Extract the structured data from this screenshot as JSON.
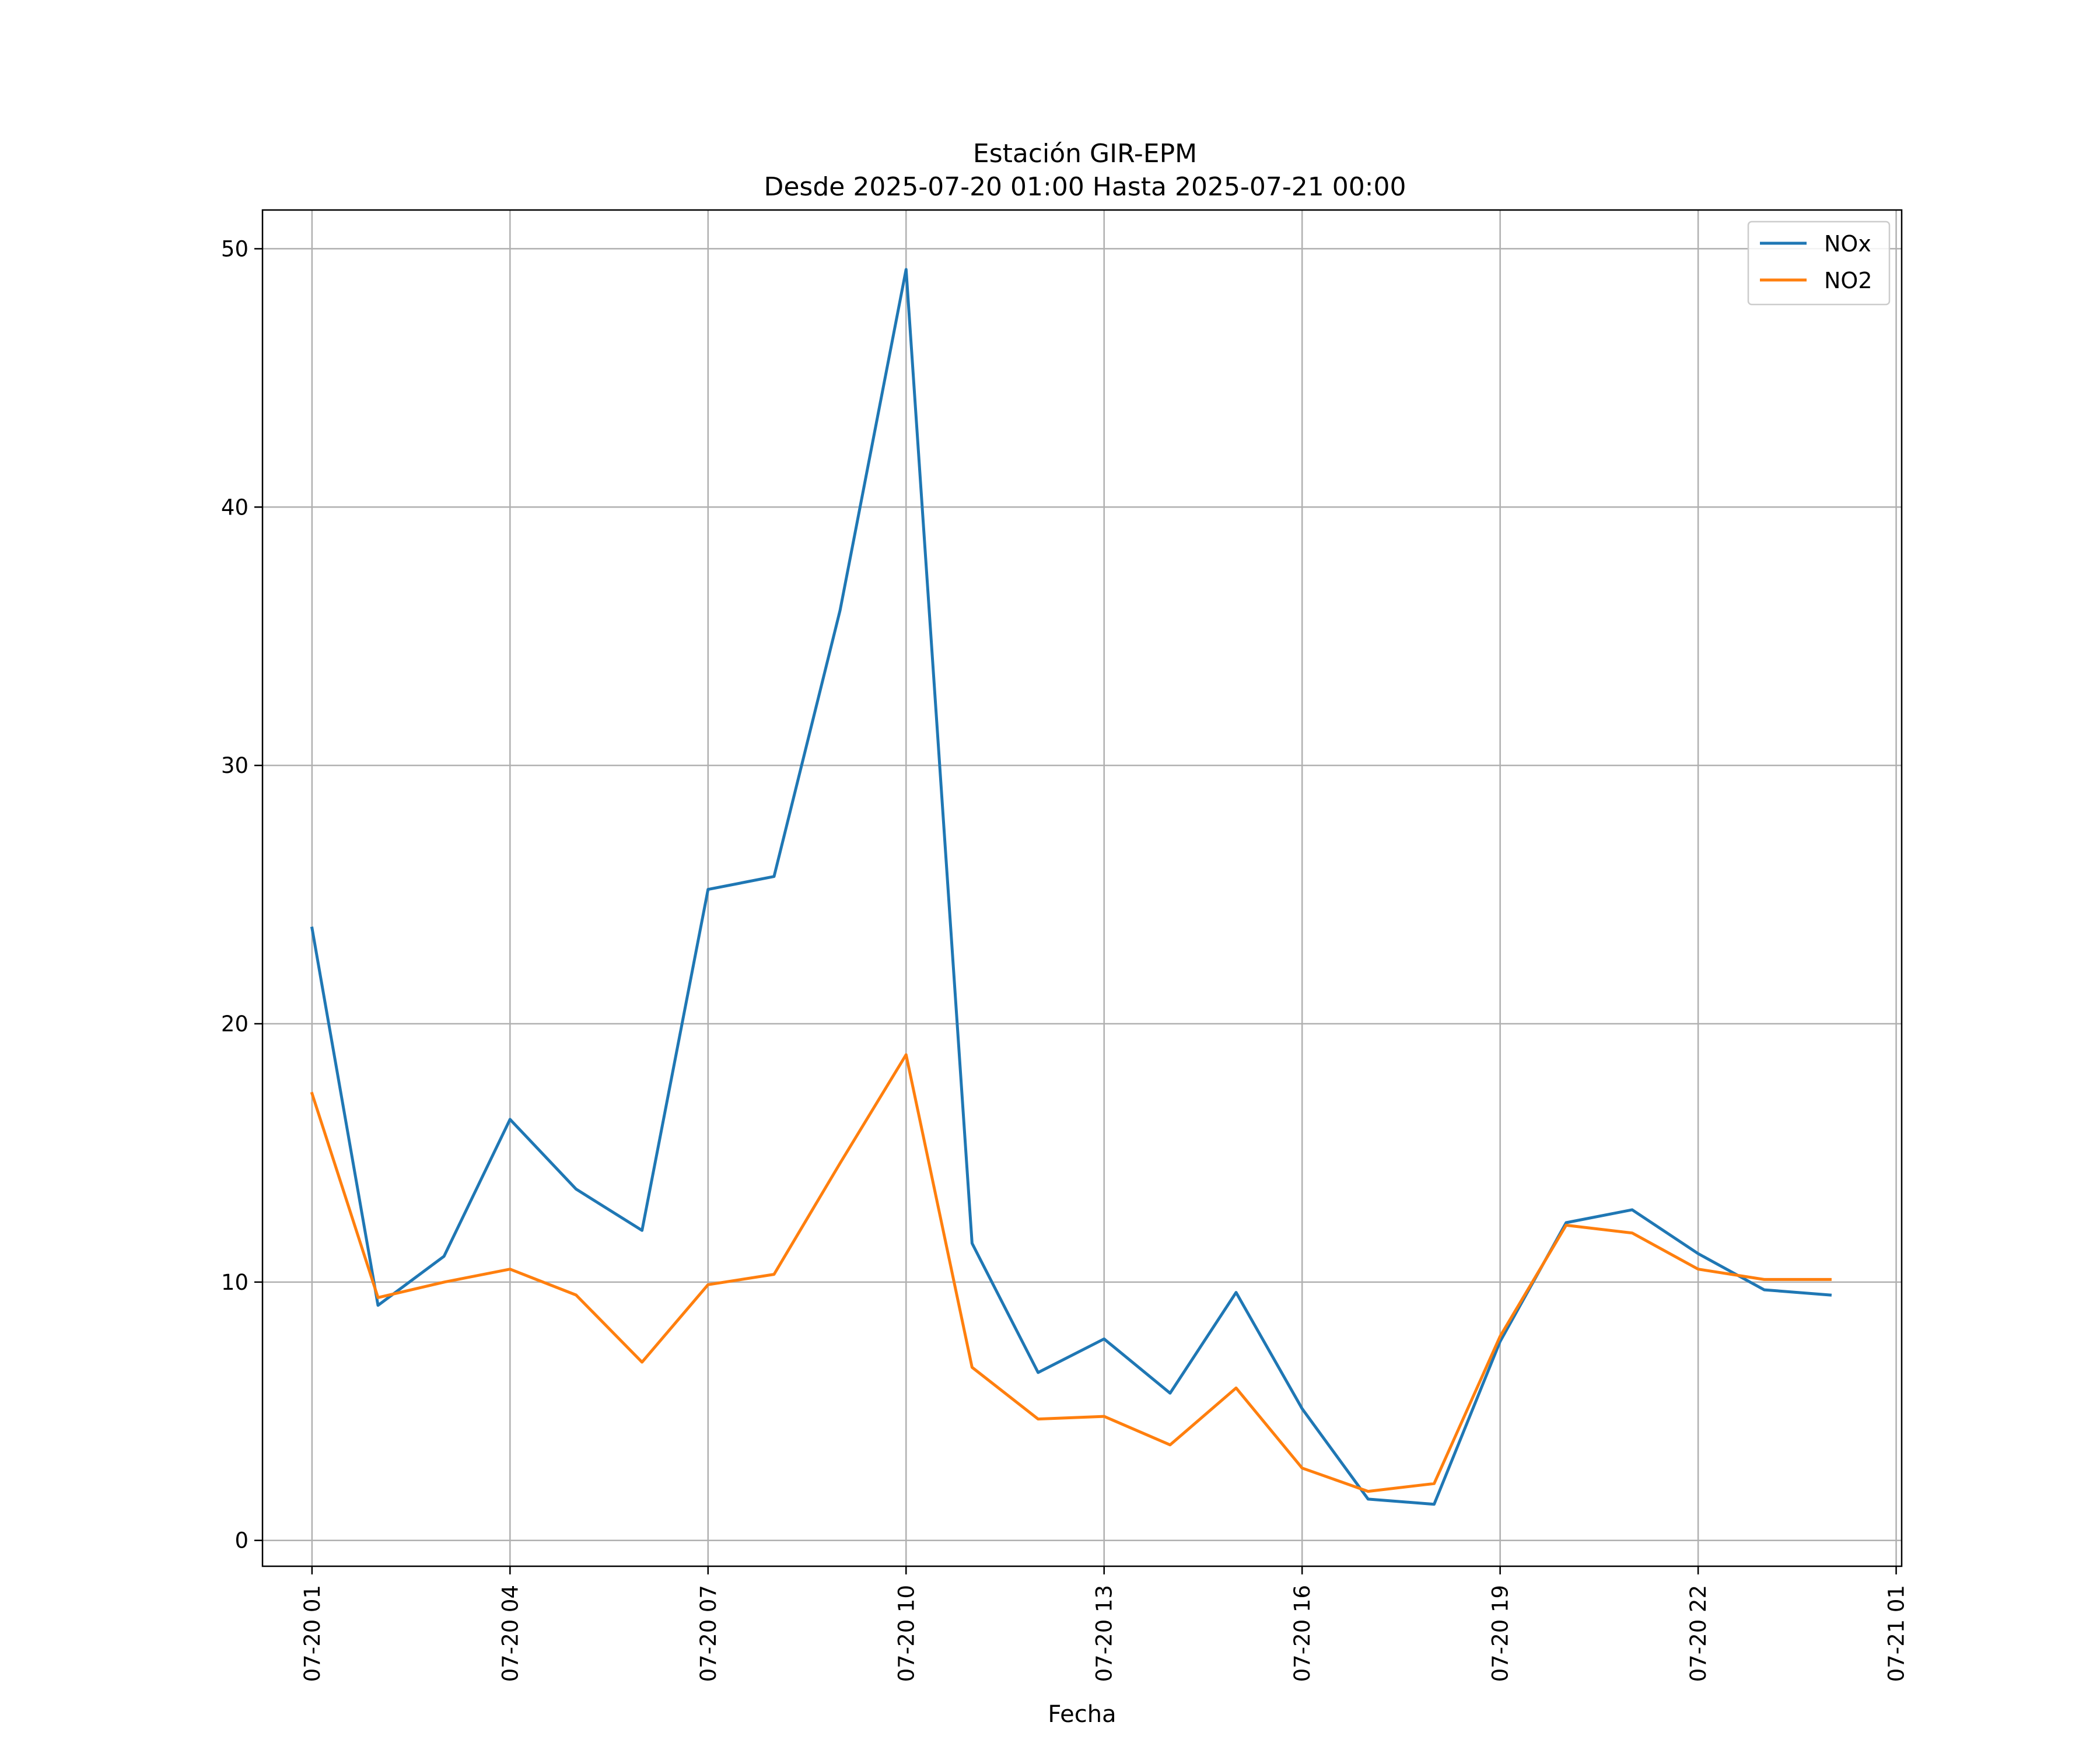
{
  "chart_data": {
    "type": "line",
    "title": "Estación GIR-EPM",
    "subtitle": "Desde 2025-07-20 01:00 Hasta 2025-07-21 00:00",
    "xlabel": "Fecha",
    "ylabel": "",
    "x": [
      "07-20 01",
      "07-20 02",
      "07-20 03",
      "07-20 04",
      "07-20 05",
      "07-20 06",
      "07-20 07",
      "07-20 08",
      "07-20 09",
      "07-20 10",
      "07-20 11",
      "07-20 12",
      "07-20 13",
      "07-20 14",
      "07-20 15",
      "07-20 16",
      "07-20 17",
      "07-20 18",
      "07-20 19",
      "07-20 20",
      "07-20 21",
      "07-20 22",
      "07-20 23",
      "07-21 00"
    ],
    "xticks": [
      "07-20 01",
      "07-20 04",
      "07-20 07",
      "07-20 10",
      "07-20 13",
      "07-20 16",
      "07-20 19",
      "07-20 22",
      "07-21 01"
    ],
    "xlim": [
      "07-20 00:15",
      "07-21 01:05"
    ],
    "ylim": [
      -1,
      51.5
    ],
    "yticks": [
      "0",
      "10",
      "20",
      "30",
      "40",
      "50"
    ],
    "grid": true,
    "legend_position": "top-right",
    "series": [
      {
        "name": "NOx",
        "color": "#1f77b4",
        "values": [
          23.7,
          9.1,
          11.0,
          16.3,
          13.6,
          12.0,
          25.2,
          25.7,
          36.0,
          49.2,
          11.5,
          6.5,
          7.8,
          5.7,
          9.6,
          5.1,
          1.6,
          1.4,
          7.7,
          12.3,
          12.8,
          11.1,
          9.7,
          9.5
        ]
      },
      {
        "name": "NO2",
        "color": "#ff7f0e",
        "values": [
          17.3,
          9.4,
          10.0,
          10.5,
          9.5,
          6.9,
          9.9,
          10.3,
          14.6,
          18.8,
          6.7,
          4.7,
          4.8,
          3.7,
          5.9,
          2.8,
          1.9,
          2.2,
          7.9,
          12.2,
          11.9,
          10.5,
          10.1,
          10.1
        ]
      }
    ]
  }
}
